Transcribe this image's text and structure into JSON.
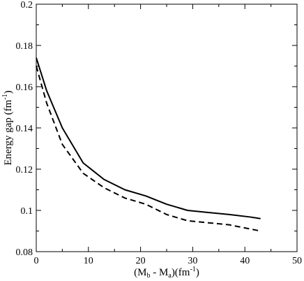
{
  "chart_data": {
    "type": "line",
    "title": "",
    "xlabel": {
      "open": "(M",
      "sub_b": "b",
      "minus": " - M",
      "sub_a": "a",
      "close": ")(fm",
      "sup": "-1",
      "end": ")"
    },
    "ylabel": {
      "text": "Energy gap (fm",
      "sup": "-1",
      "end": ")"
    },
    "xlim": [
      0,
      50
    ],
    "ylim": [
      0.08,
      0.2
    ],
    "x_ticks": [
      "0",
      "10",
      "20",
      "30",
      "40",
      "50"
    ],
    "y_ticks": [
      "0.08",
      "0.1",
      "0.12",
      "0.14",
      "0.16",
      "0.18",
      "0.2"
    ],
    "x_tick_values": [
      0,
      10,
      20,
      30,
      40,
      50
    ],
    "y_tick_values": [
      0.08,
      0.1,
      0.12,
      0.14,
      0.16,
      0.18,
      0.2
    ],
    "x_minor_values": [
      5,
      15,
      25,
      35,
      45
    ],
    "y_minor_values": [
      0.09,
      0.11,
      0.13,
      0.15,
      0.17,
      0.19
    ],
    "grid": false,
    "legend": "none",
    "series": [
      {
        "style": "solid",
        "color": "#000000",
        "x": [
          0,
          2,
          5,
          9,
          13,
          17,
          21,
          25,
          29,
          33,
          37,
          41,
          43
        ],
        "y": [
          0.174,
          0.158,
          0.14,
          0.123,
          0.115,
          0.11,
          0.107,
          0.103,
          0.1,
          0.099,
          0.098,
          0.0968,
          0.096
        ]
      },
      {
        "style": "dashed",
        "color": "#000000",
        "x": [
          0,
          2,
          5,
          9,
          13,
          17,
          21,
          25,
          29,
          33,
          37,
          41,
          43
        ],
        "y": [
          0.17,
          0.152,
          0.132,
          0.118,
          0.111,
          0.106,
          0.103,
          0.098,
          0.095,
          0.094,
          0.093,
          0.091,
          0.09
        ]
      }
    ]
  }
}
